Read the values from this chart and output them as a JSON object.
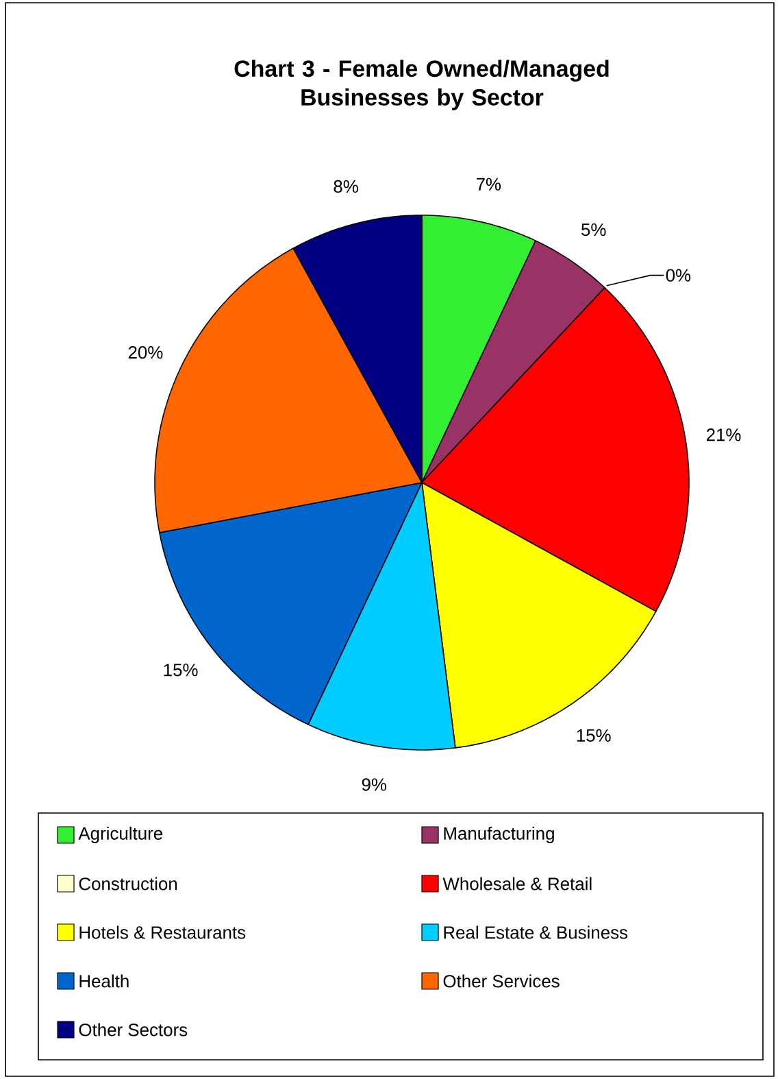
{
  "chart_data": {
    "type": "pie",
    "title": "Chart 3 - Female Owned/Managed Businesses by Sector",
    "categories": [
      "Agriculture",
      "Manufacturing",
      "Construction",
      "Wholesale & Retail",
      "Hotels & Restaurants",
      "Real Estate & Business",
      "Health",
      "Other Services",
      "Other Sectors"
    ],
    "values": [
      7,
      5,
      0,
      21,
      15,
      9,
      15,
      20,
      8
    ],
    "colors": [
      "#33ee33",
      "#993366",
      "#ffffcc",
      "#ff0000",
      "#ffff00",
      "#00ccff",
      "#0066cc",
      "#ff6600",
      "#000080"
    ],
    "value_labels": [
      "7%",
      "5%",
      "0%",
      "21%",
      "15%",
      "9%",
      "15%",
      "20%",
      "8%"
    ],
    "legend": "bottom"
  }
}
